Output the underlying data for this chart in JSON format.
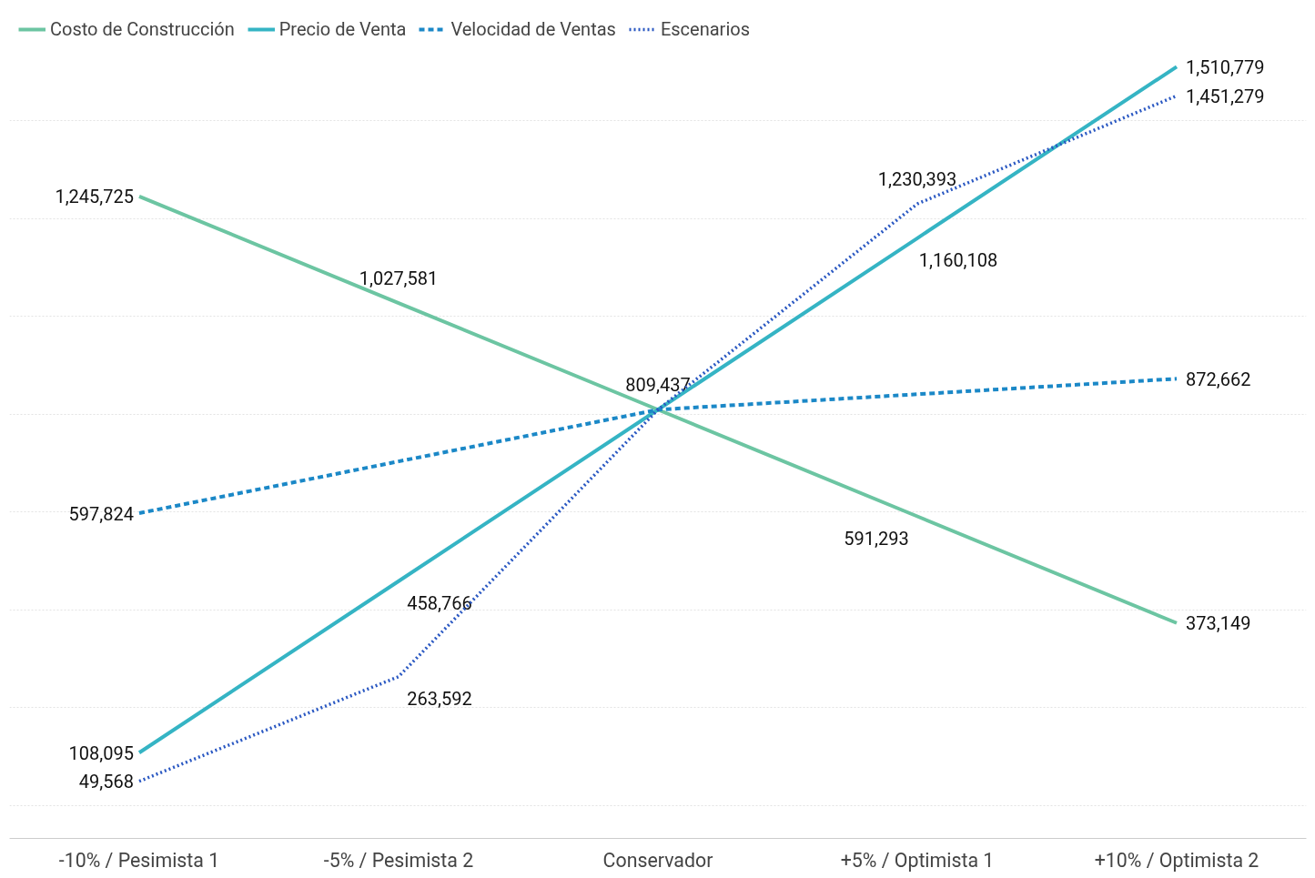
{
  "chart_data": {
    "type": "line",
    "categories": [
      "-10% / Pesimista 1",
      "-5% / Pesimista 2",
      "Conservador",
      "+5% / Optimista 1",
      "+10% / Optimista 2"
    ],
    "series": [
      {
        "name": "Costo de Construcción",
        "color": "#6cc5a2",
        "line_style": "solid",
        "values": [
          1245725,
          1027581,
          809437,
          591293,
          373149
        ],
        "value_labels": [
          "1,245,725",
          "1,027,581",
          "809,437",
          "591,293",
          "373,149"
        ]
      },
      {
        "name": "Precio de Venta",
        "color": "#35b4c4",
        "line_style": "solid",
        "values": [
          108095,
          458766,
          809437,
          1160108,
          1510779
        ],
        "value_labels": [
          "108,095",
          "458,766",
          null,
          "1,160,108",
          "1,510,779"
        ]
      },
      {
        "name": "Velocidad de Ventas",
        "color": "#1b88c7",
        "line_style": "dashed",
        "values": [
          597824,
          703630,
          809437,
          841050,
          872662
        ],
        "value_labels": [
          "597,824",
          null,
          null,
          null,
          "872,662"
        ]
      },
      {
        "name": "Escenarios",
        "color": "#2a58c2",
        "line_style": "dotted",
        "values": [
          49568,
          263592,
          809437,
          1230393,
          1451279
        ],
        "value_labels": [
          "49,568",
          "263,592",
          null,
          "1,230,393",
          "1,451,279"
        ]
      }
    ],
    "yticks": [
      {
        "value": 0,
        "label": null
      },
      {
        "value": 200000,
        "label": null
      },
      {
        "value": 400000,
        "label": null
      },
      {
        "value": 600000,
        "label": null
      },
      {
        "value": 800000,
        "label": null
      },
      {
        "value": 1000000,
        "label": null
      },
      {
        "value": 1200000,
        "label": null
      },
      {
        "value": 1400000,
        "label": null
      }
    ],
    "tick_labels": "x",
    "grid": "y",
    "legend": "top",
    "marker": "none"
  }
}
